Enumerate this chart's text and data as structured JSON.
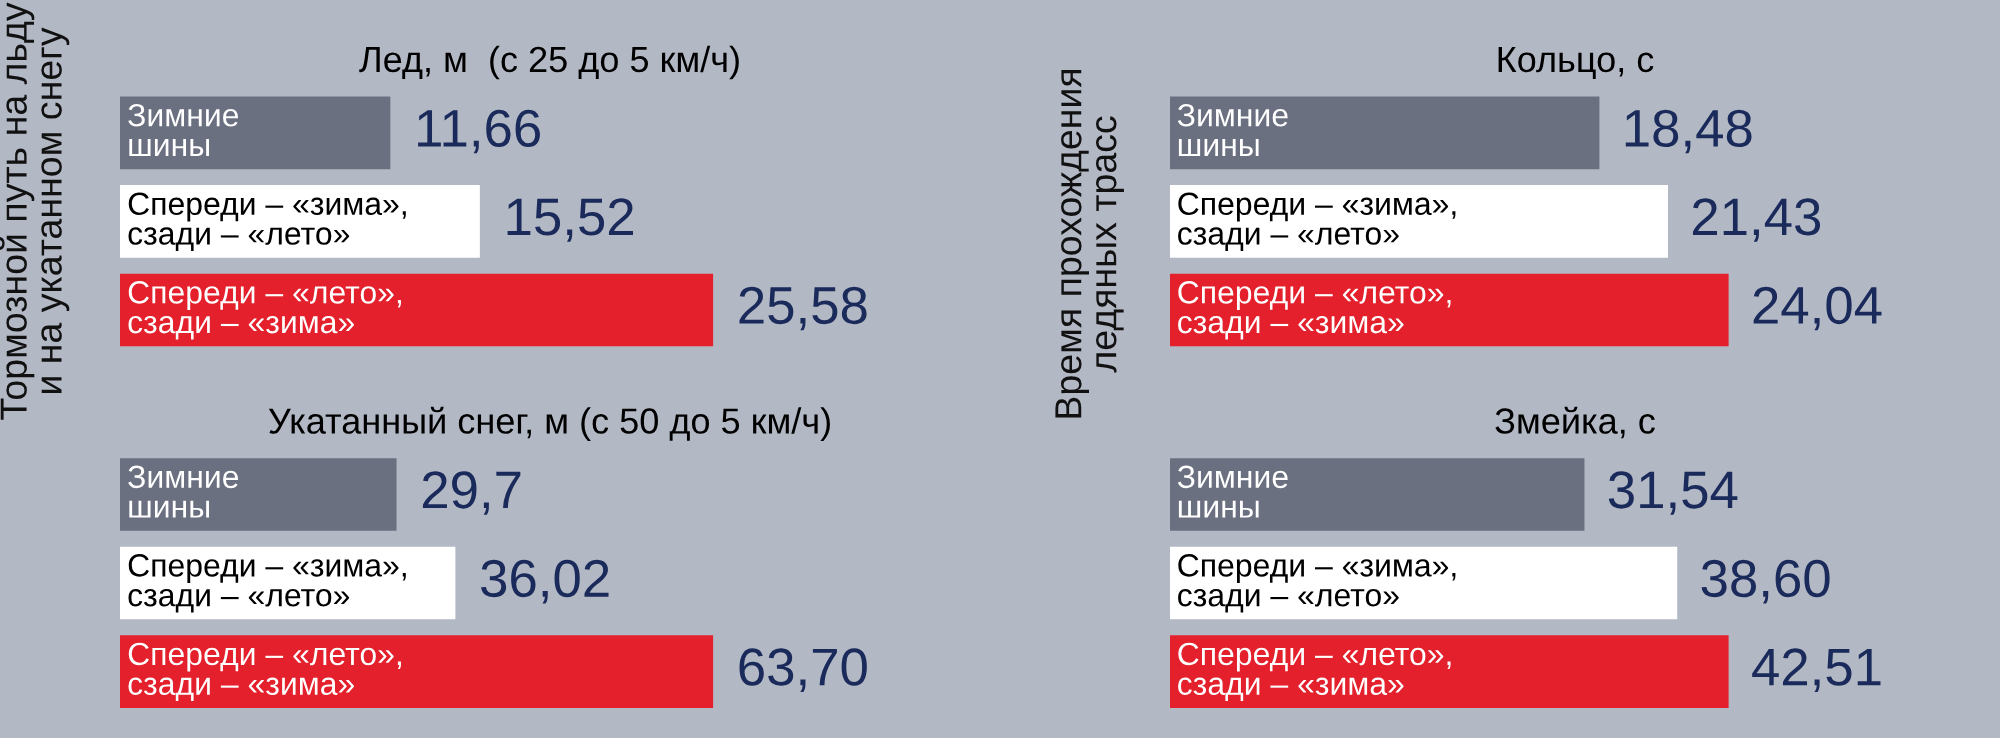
{
  "chart_data": [
    {
      "type": "bar",
      "orientation": "horizontal",
      "title": "Лед, м  (с 25 до 5 км/ч)",
      "categories": [
        "Зимние\nшины",
        "Спереди – «зима»,\nсзади – «лето»",
        "Спереди – «лето»,\nсзади – «зима»"
      ],
      "values": [
        11.66,
        15.52,
        25.58
      ],
      "value_labels": [
        "11,66",
        "15,52",
        "25,58"
      ],
      "colors": [
        "#6b7081",
        "#ffffff",
        "#e3202b"
      ],
      "annotations": [
        "Тормозной путь на льду\nи на укатанном снегу"
      ]
    },
    {
      "type": "bar",
      "orientation": "horizontal",
      "title": "Укатанный снег, м (с 50 до 5 км/ч)",
      "categories": [
        "Зимние\nшины",
        "Спереди – «зима»,\nсзади – «лето»",
        "Спереди – «лето»,\nсзади – «зима»"
      ],
      "values": [
        29.7,
        36.02,
        63.7
      ],
      "value_labels": [
        "29,7",
        "36,02",
        "63,70"
      ],
      "colors": [
        "#6b7081",
        "#ffffff",
        "#e3202b"
      ]
    },
    {
      "type": "bar",
      "orientation": "horizontal",
      "title": "Кольцо, с",
      "categories": [
        "Зимние\nшины",
        "Спереди – «зима»,\nсзади – «лето»",
        "Спереди – «лето»,\nсзади – «зима»"
      ],
      "values": [
        18.48,
        21.43,
        24.04
      ],
      "value_labels": [
        "18,48",
        "21,43",
        "24,04"
      ],
      "colors": [
        "#6b7081",
        "#ffffff",
        "#e3202b"
      ],
      "annotations": [
        "Время прохождения\nледяных трасс"
      ]
    },
    {
      "type": "bar",
      "orientation": "horizontal",
      "title": "Змейка, с",
      "categories": [
        "Зимние\nшины",
        "Спереди – «зима»,\nсзади – «лето»",
        "Спереди – «лето»,\nсзади – «зима»"
      ],
      "values": [
        31.54,
        38.6,
        42.51
      ],
      "value_labels": [
        "31,54",
        "38,60",
        "42,51"
      ],
      "colors": [
        "#6b7081",
        "#ffffff",
        "#e3202b"
      ]
    }
  ]
}
